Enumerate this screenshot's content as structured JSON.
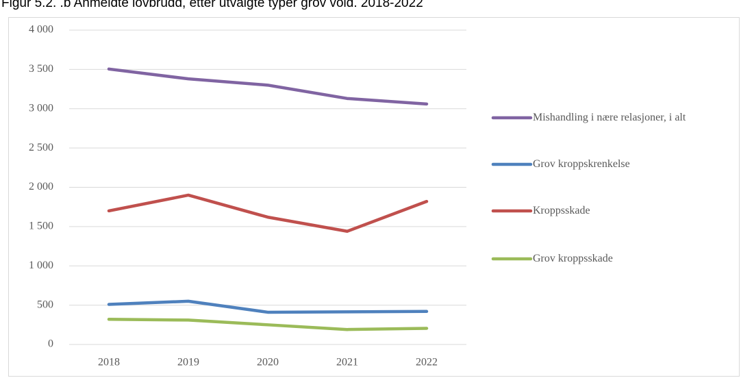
{
  "chart_data": {
    "type": "line",
    "title": "Figur 5.2. .b Anmeldte lovbrudd, etter utvalgte typer grov vold. 2018-2022",
    "categories": [
      "2018",
      "2019",
      "2020",
      "2021",
      "2022"
    ],
    "series": [
      {
        "name": "Mishandling i nære relasjoner, i alt",
        "color": "#8064a2",
        "values": [
          3505,
          3380,
          3300,
          3130,
          3060
        ]
      },
      {
        "name": "Grov kroppskrenkelse",
        "color": "#4f81bd",
        "values": [
          510,
          550,
          410,
          415,
          420
        ]
      },
      {
        "name": "Kroppsskade",
        "color": "#c0504d",
        "values": [
          1700,
          1900,
          1620,
          1440,
          1820
        ]
      },
      {
        "name": "Grov kroppsskade",
        "color": "#9bbb59",
        "values": [
          320,
          310,
          250,
          190,
          205
        ]
      }
    ],
    "ylim": [
      0,
      4000
    ],
    "yticks": [
      0,
      500,
      {
        "value": 1000,
        "label": "1 000"
      },
      {
        "value": 1500,
        "label": "1 500"
      },
      {
        "value": 2000,
        "label": "2 000"
      },
      {
        "value": 2500,
        "label": "2 500"
      },
      {
        "value": 3000,
        "label": "3 000"
      },
      {
        "value": 3500,
        "label": "3 500"
      },
      {
        "value": 4000,
        "label": "4 000"
      }
    ],
    "grid": true,
    "legend": "right"
  }
}
